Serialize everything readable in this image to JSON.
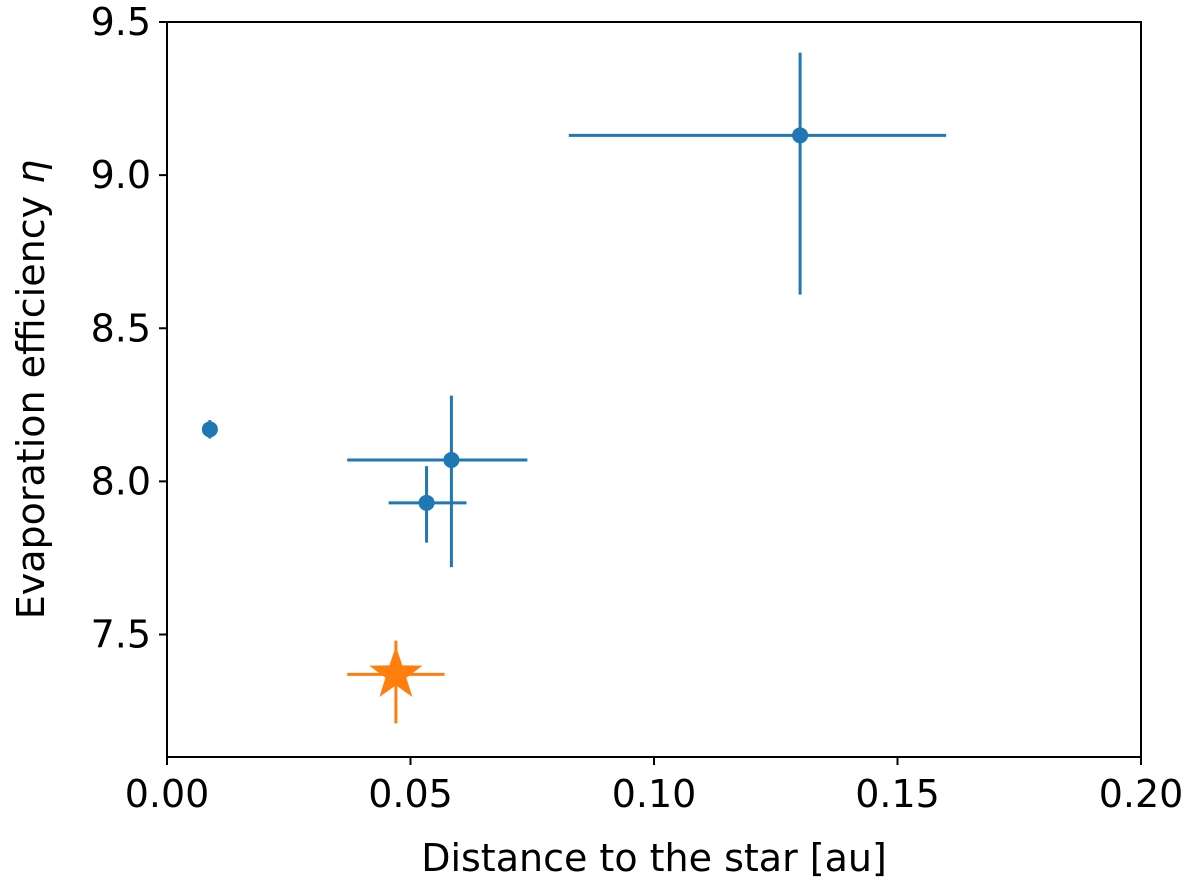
{
  "chart_data": {
    "type": "scatter",
    "xlabel": "Distance to the star [au]",
    "ylabel_text": "Evaporation efficiency ",
    "ylabel_symbol": "η",
    "xlim": [
      0.0,
      0.2
    ],
    "ylim": [
      7.1,
      9.5
    ],
    "xticks": [
      0.0,
      0.05,
      0.1,
      0.15,
      0.2
    ],
    "xtick_labels": [
      "0.00",
      "0.05",
      "0.10",
      "0.15",
      "0.20"
    ],
    "yticks": [
      7.5,
      8.0,
      8.5,
      9.0,
      9.5
    ],
    "ytick_labels": [
      "7.5",
      "8.0",
      "8.5",
      "9.0",
      "9.5"
    ],
    "grid": false,
    "series": [
      {
        "marker": "circle",
        "color": "#1f77b4",
        "points": [
          {
            "x": 0.0088,
            "y": 8.17,
            "xerr": [
              0.0,
              0.0
            ],
            "yerr": [
              0.03,
              0.03
            ]
          },
          {
            "x": 0.0533,
            "y": 7.93,
            "xerr": [
              0.0078,
              0.0082
            ],
            "yerr": [
              0.13,
              0.12
            ]
          },
          {
            "x": 0.0584,
            "y": 8.07,
            "xerr": [
              0.0214,
              0.0156
            ],
            "yerr": [
              0.35,
              0.21
            ]
          },
          {
            "x": 0.13,
            "y": 9.13,
            "xerr": [
              0.0475,
              0.03
            ],
            "yerr": [
              0.52,
              0.27
            ]
          }
        ]
      },
      {
        "marker": "star",
        "color": "#ff7f0e",
        "points": [
          {
            "x": 0.047,
            "y": 7.37,
            "xerr": [
              0.01,
              0.01
            ],
            "yerr": [
              0.16,
              0.11
            ]
          }
        ]
      }
    ]
  }
}
